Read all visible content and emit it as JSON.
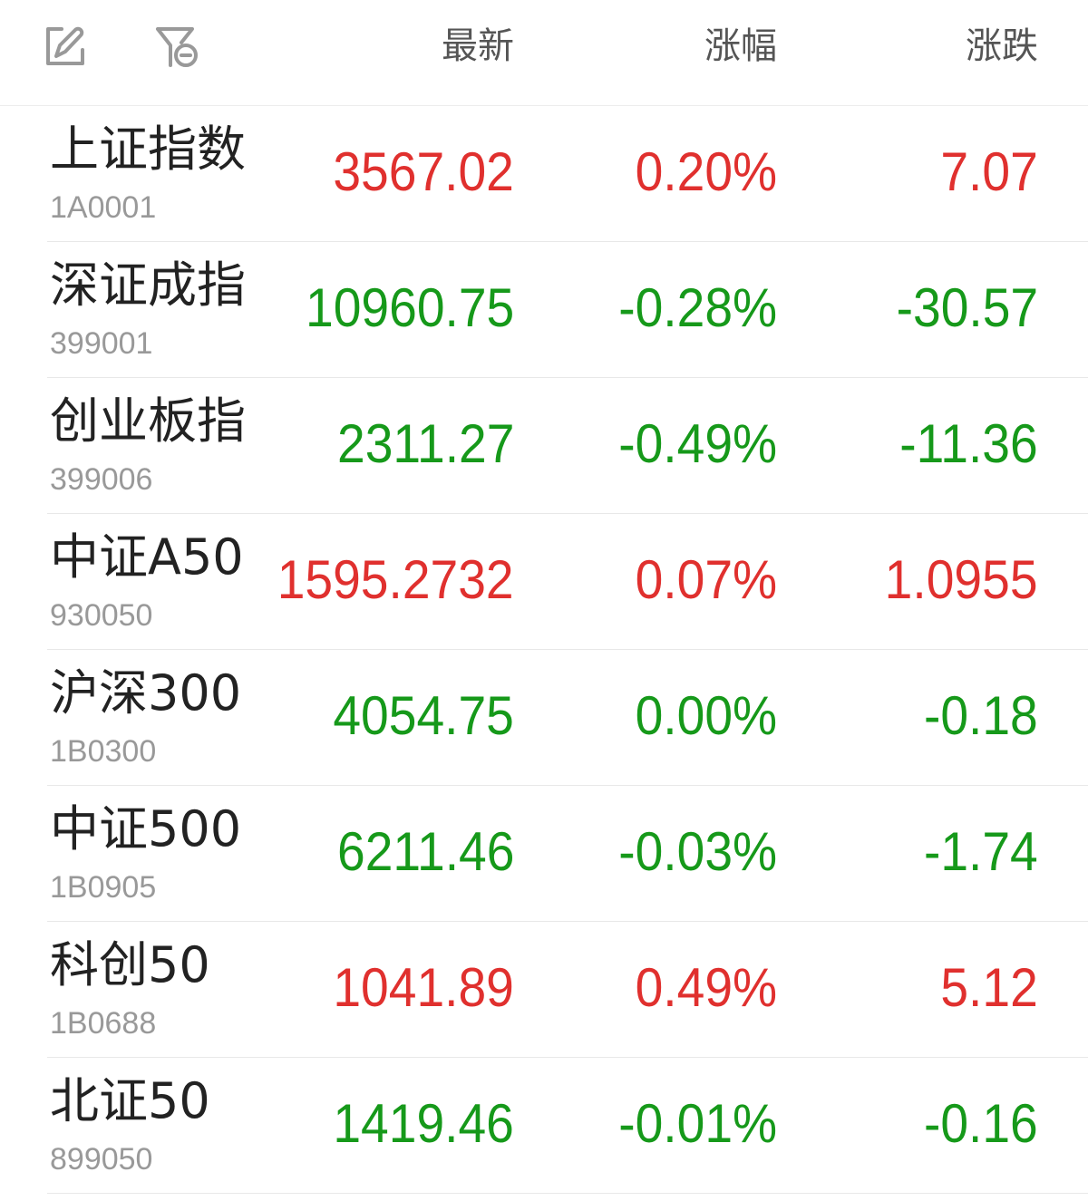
{
  "header": {
    "edit_icon": "edit-icon",
    "filter_icon": "filter-remove-icon",
    "col_price": "最新",
    "col_pct": "涨幅",
    "col_change": "涨跌"
  },
  "colors": {
    "up": "#e0302e",
    "down": "#16991a"
  },
  "rows": [
    {
      "name": "上证指数",
      "code": "1A0001",
      "price": "3567.02",
      "pct": "0.20%",
      "change": "7.07",
      "trend": "up"
    },
    {
      "name": "深证成指",
      "code": "399001",
      "price": "10960.75",
      "pct": "-0.28%",
      "change": "-30.57",
      "trend": "down"
    },
    {
      "name": "创业板指",
      "code": "399006",
      "price": "2311.27",
      "pct": "-0.49%",
      "change": "-11.36",
      "trend": "down"
    },
    {
      "name": "中证A50",
      "code": "930050",
      "price": "1595.2732",
      "pct": "0.07%",
      "change": "1.0955",
      "trend": "up"
    },
    {
      "name": "沪深300",
      "code": "1B0300",
      "price": "4054.75",
      "pct": "0.00%",
      "change": "-0.18",
      "trend": "down"
    },
    {
      "name": "中证500",
      "code": "1B0905",
      "price": "6211.46",
      "pct": "-0.03%",
      "change": "-1.74",
      "trend": "down"
    },
    {
      "name": "科创50",
      "code": "1B0688",
      "price": "1041.89",
      "pct": "0.49%",
      "change": "5.12",
      "trend": "up"
    },
    {
      "name": "北证50",
      "code": "899050",
      "price": "1419.46",
      "pct": "-0.01%",
      "change": "-0.16",
      "trend": "down"
    }
  ]
}
